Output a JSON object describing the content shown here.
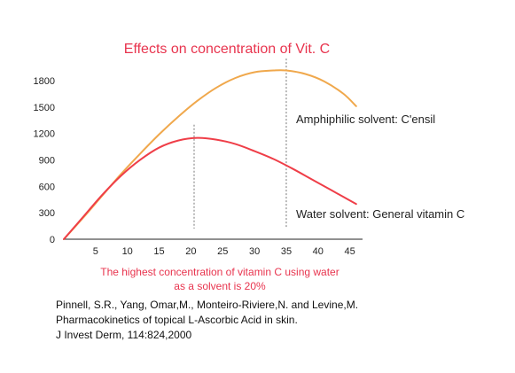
{
  "chart_data": {
    "type": "line",
    "title": "Effects on concentration of Vit. C",
    "xlabel": "",
    "ylabel": "",
    "xlim": [
      0,
      47
    ],
    "ylim": [
      0,
      1850
    ],
    "x_ticks": [
      5,
      10,
      15,
      20,
      25,
      30,
      35,
      40,
      45
    ],
    "y_ticks": [
      0,
      300,
      600,
      900,
      1200,
      1500,
      1800
    ],
    "grid": false,
    "legend": "none",
    "series": [
      {
        "name": "Amphiphilic solvent: C'ensil",
        "color": "#f0a84c",
        "x": [
          0,
          3,
          6,
          9,
          12,
          15,
          18,
          21,
          24,
          27,
          30,
          33,
          35,
          38,
          41,
          44,
          46
        ],
        "y": [
          0,
          240,
          490,
          740,
          970,
          1190,
          1390,
          1570,
          1720,
          1830,
          1895,
          1915,
          1915,
          1875,
          1790,
          1650,
          1510
        ]
      },
      {
        "name": "Water solvent: General vitamin C",
        "color": "#ef3e48",
        "x": [
          0,
          3,
          6,
          9,
          12,
          15,
          18,
          21,
          24,
          27,
          30,
          33,
          36,
          39,
          42,
          44,
          46
        ],
        "y": [
          0,
          250,
          500,
          720,
          900,
          1040,
          1120,
          1150,
          1130,
          1080,
          1000,
          910,
          800,
          680,
          560,
          480,
          400
        ]
      }
    ],
    "markers": [
      {
        "x": 20.5,
        "y_top": 1300
      },
      {
        "x": 35,
        "y_top": 2050
      }
    ],
    "note_lines": [
      "The highest concentration of vitamin C using water",
      "as a solvent is 20%"
    ],
    "note_color": "#e8344e",
    "title_color": "#e8344e"
  },
  "citation": [
    "Pinnell, S.R., Yang, Omar,M., Monteiro-Riviere,N. and Levine,M.",
    "Pharmacokinetics of topical L-Ascorbic Acid in skin.",
    "J Invest Derm, 114:824,2000"
  ]
}
